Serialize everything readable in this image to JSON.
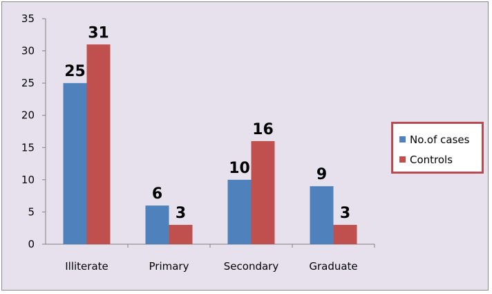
{
  "chart_data": {
    "type": "bar",
    "categories": [
      "Illiterate",
      "Primary",
      "Secondary",
      "Graduate"
    ],
    "series": [
      {
        "name": "No.of cases",
        "values": [
          25,
          6,
          10,
          9
        ],
        "color": "#4f81bd"
      },
      {
        "name": "Controls",
        "values": [
          31,
          3,
          16,
          3
        ],
        "color": "#c0504d"
      }
    ],
    "title": "",
    "xlabel": "",
    "ylabel": "",
    "ylim": [
      0,
      35
    ],
    "yticks": [
      0,
      5,
      10,
      15,
      20,
      25,
      30,
      35
    ],
    "grid": false,
    "legend_position": "right"
  }
}
